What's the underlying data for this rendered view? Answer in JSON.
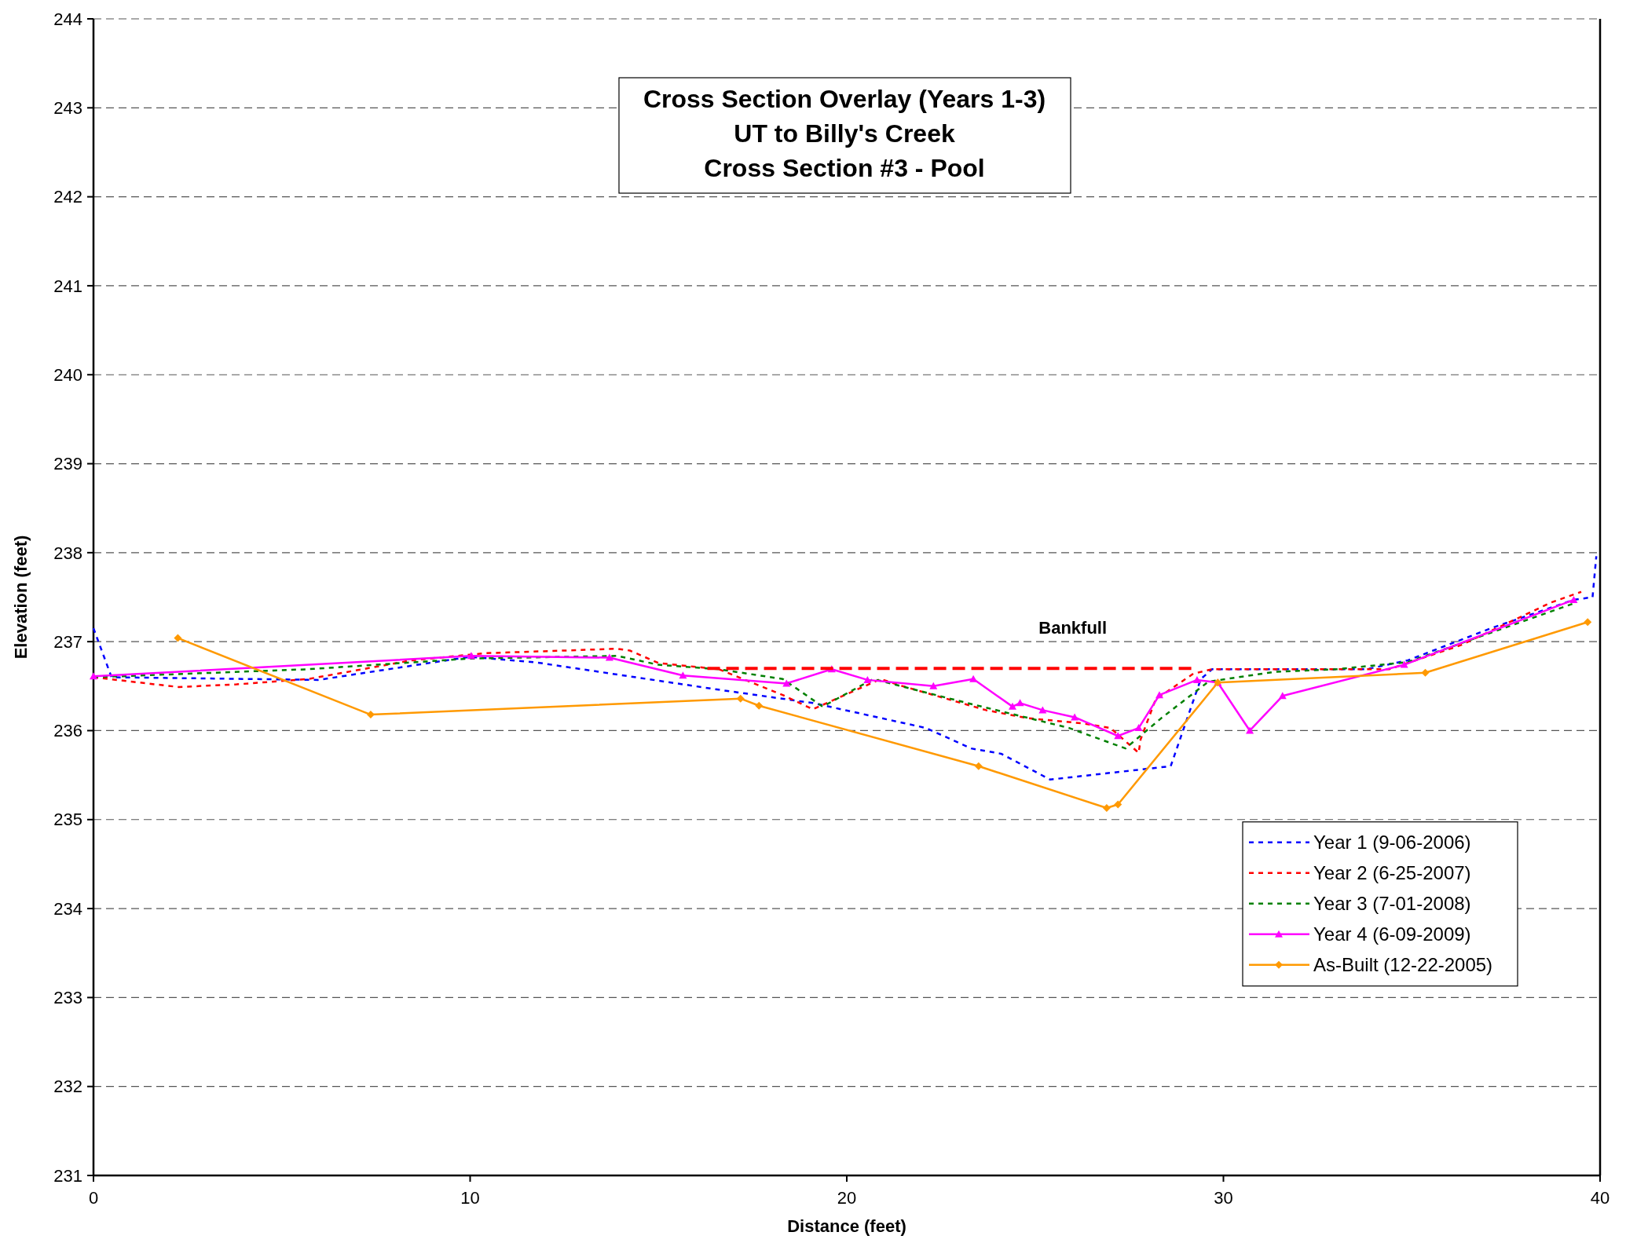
{
  "chart_data": {
    "type": "line",
    "title": "Cross Section Overlay (Years 1-3)\nUT to Billy's Creek\nCross Section #3 - Pool",
    "xlabel": "Distance (feet)",
    "ylabel": "Elevation (feet)",
    "xlim": [
      0,
      40
    ],
    "ylim": [
      231,
      244
    ],
    "xticks": [
      0,
      10,
      20,
      30,
      40
    ],
    "yticks": [
      231,
      232,
      233,
      234,
      235,
      236,
      237,
      238,
      239,
      240,
      241,
      242,
      243,
      244
    ],
    "grid": "y",
    "legend": "bottom right",
    "annotations": [
      {
        "text": "Bankfull",
        "x": 26,
        "y": 236.7
      }
    ],
    "series": [
      {
        "name": "Year 1 (9-06-2006)",
        "color": "#0000ff",
        "line_style": "dotted",
        "marker": "none",
        "x": [
          0,
          0.48,
          5.97,
          10,
          11.7,
          16.6,
          19.1,
          22.1,
          23.3,
          24.1,
          25.4,
          28.6,
          29.4,
          29.7,
          33.8,
          34.9,
          37.1,
          39.3,
          39.8,
          39.9
        ],
        "values": [
          237.15,
          236.6,
          236.57,
          236.83,
          236.77,
          236.46,
          236.31,
          236.03,
          235.8,
          235.74,
          235.45,
          235.6,
          236.58,
          236.69,
          236.69,
          236.79,
          237.15,
          237.47,
          237.5,
          237.96
        ]
      },
      {
        "name": "Year 2 (6-25-2007)",
        "color": "#ff0000",
        "line_style": "dotted",
        "marker": "none",
        "x": [
          0,
          2.26,
          3.8,
          5.7,
          8.45,
          10.4,
          13.9,
          14.24,
          15,
          16.6,
          18.3,
          19.1,
          20.9,
          21.4,
          23.7,
          24.8,
          26.3,
          27,
          27.75,
          27.8,
          28.2,
          29.2,
          29.7,
          34.4,
          36.3,
          38.7,
          39.5
        ],
        "values": [
          236.6,
          236.49,
          236.52,
          236.58,
          236.79,
          236.87,
          236.92,
          236.9,
          236.76,
          236.69,
          236.4,
          236.24,
          236.58,
          236.51,
          236.23,
          236.14,
          236.08,
          236.03,
          235.75,
          235.9,
          236.35,
          236.64,
          236.69,
          236.69,
          236.96,
          237.44,
          237.56
        ]
      },
      {
        "name": "Year 3 (7-01-2008)",
        "color": "#008000",
        "line_style": "dotted",
        "marker": "none",
        "x": [
          0,
          5.7,
          10,
          13.9,
          15,
          16.6,
          18.3,
          19.36,
          20.7,
          23.2,
          25.9,
          27.4,
          28.35,
          29.6,
          31.35,
          33,
          34.9,
          37.1,
          39.3
        ],
        "values": [
          236.6,
          236.69,
          236.81,
          236.84,
          236.74,
          236.69,
          236.58,
          236.27,
          236.58,
          236.31,
          236.03,
          235.8,
          236.14,
          236.55,
          236.66,
          236.69,
          236.77,
          237.1,
          237.43
        ]
      },
      {
        "name": "Year 4 (6-09-2009)",
        "color": "#ff00ff",
        "line_style": "solid",
        "marker": "triangle",
        "x": [
          0,
          10.03,
          13.7,
          15.65,
          18.4,
          19.6,
          20.55,
          22.3,
          23.36,
          24.4,
          24.6,
          25.2,
          26.05,
          27.2,
          27.75,
          28.3,
          29.3,
          29.85,
          30.7,
          31.57,
          34.8,
          39.3
        ],
        "values": [
          236.61,
          236.84,
          236.82,
          236.62,
          236.53,
          236.69,
          236.57,
          236.5,
          236.58,
          236.27,
          236.31,
          236.23,
          236.15,
          235.94,
          236.03,
          236.4,
          236.57,
          236.54,
          236,
          236.39,
          236.74,
          237.47
        ]
      },
      {
        "name": "As-Built (12-22-2005)",
        "color": "#ff9900",
        "line_style": "solid",
        "marker": "diamond",
        "x": [
          2.24,
          7.36,
          17.18,
          17.67,
          23.5,
          26.9,
          27.2,
          29.85,
          35.36,
          39.67
        ],
        "values": [
          237.04,
          236.18,
          236.36,
          236.28,
          235.6,
          235.13,
          235.17,
          236.54,
          236.65,
          237.22
        ]
      },
      {
        "color": "#ff0000",
        "line_style": "dashed",
        "marker": "none",
        "x": [
          16.3,
          29.3
        ],
        "values": [
          236.7,
          236.7
        ]
      }
    ]
  }
}
